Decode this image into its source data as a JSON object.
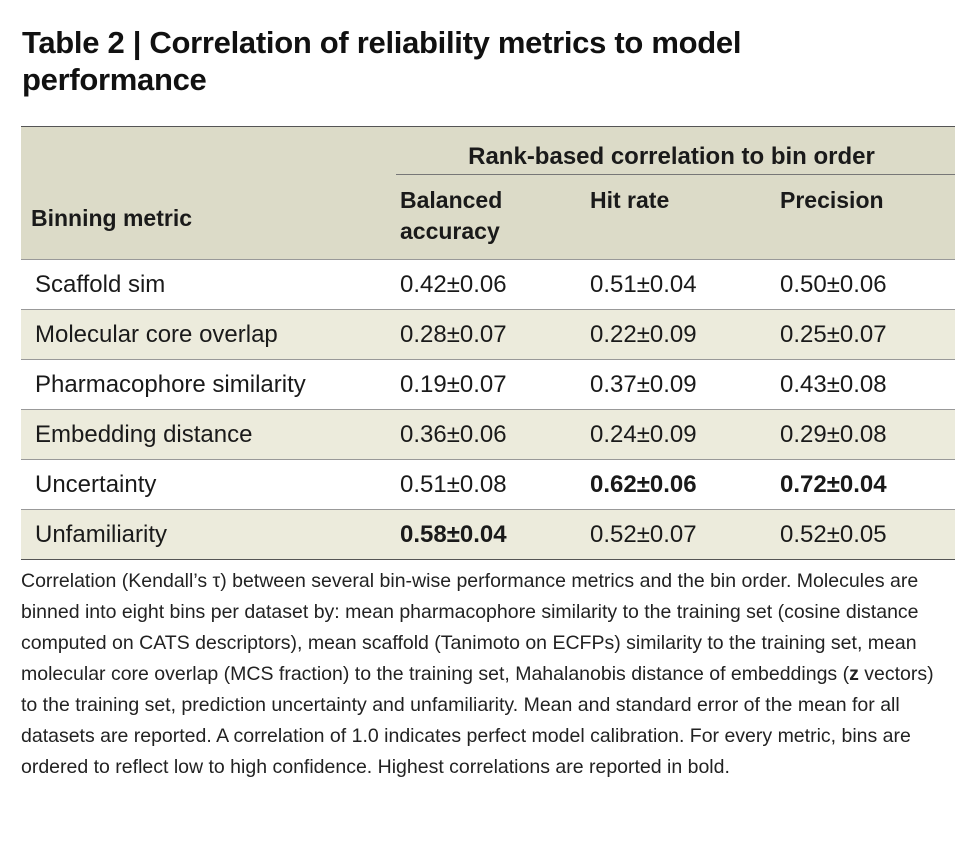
{
  "title": "Table 2 | Correlation of reliability metrics to model performance",
  "table": {
    "group_header": "Rank-based correlation to bin order",
    "metric_header": "Binning metric",
    "columns": [
      "Balanced accuracy",
      "Hit rate",
      "Precision"
    ],
    "rows": [
      {
        "name": "Scaffold sim",
        "values": [
          "0.42±0.06",
          "0.51±0.04",
          "0.50±0.06"
        ],
        "bold": [
          false,
          false,
          false
        ]
      },
      {
        "name": "Molecular core overlap",
        "values": [
          "0.28±0.07",
          "0.22±0.09",
          "0.25±0.07"
        ],
        "bold": [
          false,
          false,
          false
        ]
      },
      {
        "name": "Pharmacophore similarity",
        "values": [
          "0.19±0.07",
          "0.37±0.09",
          "0.43±0.08"
        ],
        "bold": [
          false,
          false,
          false
        ]
      },
      {
        "name": "Embedding distance",
        "values": [
          "0.36±0.06",
          "0.24±0.09",
          "0.29±0.08"
        ],
        "bold": [
          false,
          false,
          false
        ]
      },
      {
        "name": "Uncertainty",
        "values": [
          "0.51±0.08",
          "0.62±0.06",
          "0.72±0.04"
        ],
        "bold": [
          false,
          true,
          true
        ]
      },
      {
        "name": "Unfamiliarity",
        "values": [
          "0.58±0.04",
          "0.52±0.07",
          "0.52±0.05"
        ],
        "bold": [
          true,
          false,
          false
        ]
      }
    ]
  },
  "caption": {
    "part1": "Correlation (Kendall’s τ) between several bin-wise performance metrics and the bin order. Molecules are binned into eight bins per dataset by: mean pharmacophore similarity to the training set (cosine distance computed on CATS descriptors), mean scaffold (Tanimoto on ECFPs) similarity to the training set, mean molecular core overlap (MCS fraction) to the training set, Mahalanobis distance of embeddings (",
    "bold_symbol": "z",
    "part2": " vectors) to the training set, prediction uncertainty and unfamiliarity. Mean and standard error of the mean for all datasets are reported. A correlation of 1.0 indicates perfect model calibration. For every metric, bins are ordered to reflect low to high confidence. Highest correlations are reported in bold."
  }
}
